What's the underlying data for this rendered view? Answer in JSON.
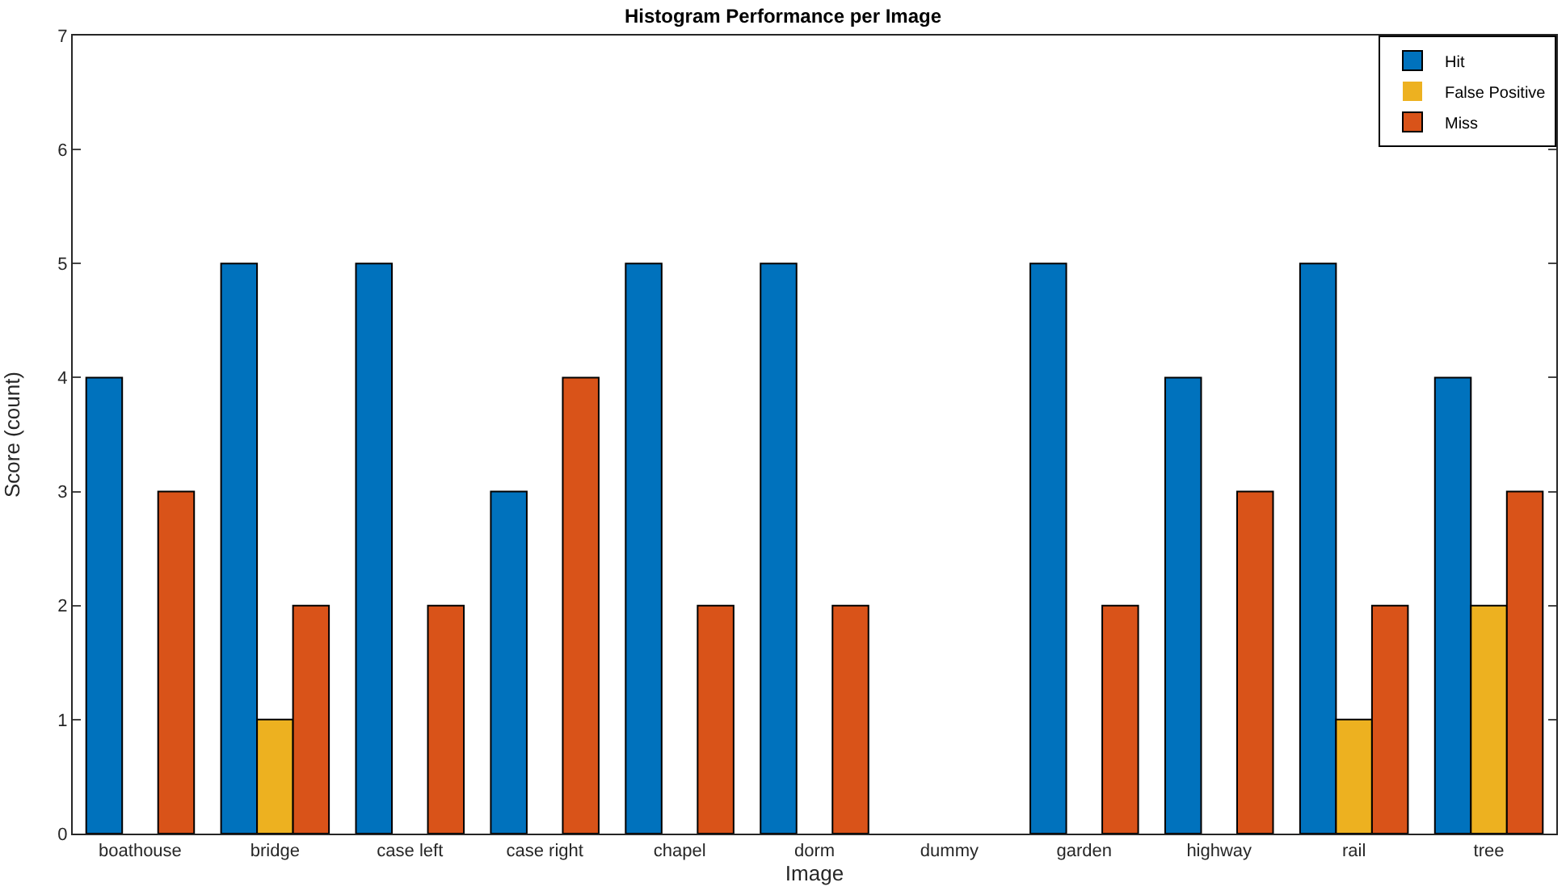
{
  "chart_data": {
    "type": "bar",
    "title": "Histogram Performance per Image",
    "xlabel": "Image",
    "ylabel": "Score (count)",
    "categories": [
      "boathouse",
      "bridge",
      "case left",
      "case right",
      "chapel",
      "dorm",
      "dummy",
      "garden",
      "highway",
      "rail",
      "tree"
    ],
    "series": [
      {
        "name": "Hit",
        "color": "#0072bd",
        "values": [
          4,
          5,
          5,
          3,
          5,
          5,
          0,
          5,
          4,
          5,
          4
        ]
      },
      {
        "name": "False Positive",
        "color": "#edb120",
        "values": [
          0,
          1,
          0,
          0,
          0,
          0,
          0,
          0,
          0,
          1,
          2
        ]
      },
      {
        "name": "Miss",
        "color": "#d95319",
        "values": [
          3,
          2,
          2,
          4,
          2,
          2,
          0,
          2,
          3,
          2,
          3
        ]
      }
    ],
    "ylim": [
      0,
      7
    ],
    "yticks": [
      0,
      1,
      2,
      3,
      4,
      5,
      6,
      7
    ],
    "grid": false,
    "legend": "top right"
  }
}
